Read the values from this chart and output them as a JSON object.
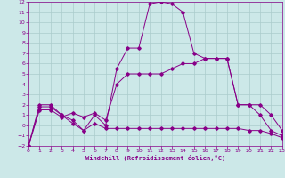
{
  "xlabel": "Windchill (Refroidissement éolien,°C)",
  "bg_color": "#cce8e8",
  "line_color": "#880088",
  "grid_color": "#aacccc",
  "xlim": [
    0,
    23
  ],
  "ylim": [
    -2,
    12
  ],
  "xticks": [
    0,
    1,
    2,
    3,
    4,
    5,
    6,
    7,
    8,
    9,
    10,
    11,
    12,
    13,
    14,
    15,
    16,
    17,
    18,
    19,
    20,
    21,
    22,
    23
  ],
  "yticks": [
    -2,
    -1,
    0,
    1,
    2,
    3,
    4,
    5,
    6,
    7,
    8,
    9,
    10,
    11,
    12
  ],
  "line1_x": [
    0,
    1,
    2,
    3,
    4,
    5,
    6,
    7,
    8,
    9,
    10,
    11,
    12,
    13,
    14,
    15,
    16,
    17,
    18,
    19,
    20,
    21,
    22,
    23
  ],
  "line1_y": [
    -2,
    2.0,
    2.0,
    1.0,
    0.5,
    -0.5,
    1.0,
    0.0,
    5.5,
    7.5,
    7.5,
    11.8,
    12.0,
    11.8,
    11.0,
    7.0,
    6.5,
    6.5,
    6.5,
    2.0,
    2.0,
    1.0,
    -0.5,
    -1.0
  ],
  "line2_x": [
    0,
    1,
    2,
    3,
    4,
    5,
    6,
    7,
    8,
    9,
    10,
    11,
    12,
    13,
    14,
    15,
    16,
    17,
    18,
    19,
    20,
    21,
    22,
    23
  ],
  "line2_y": [
    -2,
    1.5,
    1.5,
    0.8,
    1.2,
    0.8,
    1.2,
    0.5,
    4.0,
    5.0,
    5.0,
    5.0,
    5.0,
    5.5,
    6.0,
    6.0,
    6.5,
    6.5,
    6.5,
    2.0,
    2.0,
    2.0,
    1.0,
    -0.5
  ],
  "line3_x": [
    0,
    1,
    2,
    3,
    4,
    5,
    6,
    7,
    8,
    9,
    10,
    11,
    12,
    13,
    14,
    15,
    16,
    17,
    18,
    19,
    20,
    21,
    22,
    23
  ],
  "line3_y": [
    -2,
    1.8,
    1.8,
    1.0,
    0.2,
    -0.5,
    0.2,
    -0.3,
    -0.3,
    -0.3,
    -0.3,
    -0.3,
    -0.3,
    -0.3,
    -0.3,
    -0.3,
    -0.3,
    -0.3,
    -0.3,
    -0.3,
    -0.5,
    -0.5,
    -0.8,
    -1.2
  ],
  "marker": "D",
  "markersize": 1.8,
  "linewidth": 0.7
}
